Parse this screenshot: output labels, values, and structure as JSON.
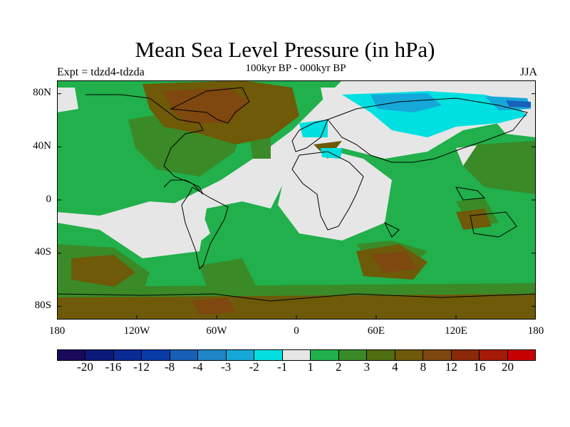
{
  "header": {
    "title": "Mean Sea Level Pressure (in hPa)",
    "experiment": "Expt = tdzd4-tdzda",
    "period": "100kyr BP - 000kyr BP",
    "season": "JJA"
  },
  "map": {
    "projection": "cylindrical equidistant",
    "lon_range": [
      -180,
      180
    ],
    "lat_range": [
      -90,
      90
    ],
    "y_tick_labels": [
      "80N",
      "40N",
      "0",
      "40S",
      "80S"
    ],
    "x_tick_labels": [
      "180",
      "120W",
      "60W",
      "0",
      "60E",
      "120E",
      "180"
    ]
  },
  "colorbar": {
    "colors": [
      "#1a0a5a",
      "#0b1a7a",
      "#0a2a96",
      "#0a3ca8",
      "#1760b8",
      "#1f86c8",
      "#16a8d8",
      "#00e0e0",
      "#e6e6e6",
      "#21b04b",
      "#3a8a28",
      "#4f6e10",
      "#6e5a08",
      "#7e4810",
      "#8a2a08",
      "#a81a08",
      "#c80000"
    ],
    "labels": [
      "-20",
      "-16",
      "-12",
      "-8",
      "-4",
      "-3",
      "-2",
      "-1",
      "1",
      "2",
      "3",
      "4",
      "8",
      "12",
      "16",
      "20"
    ]
  }
}
